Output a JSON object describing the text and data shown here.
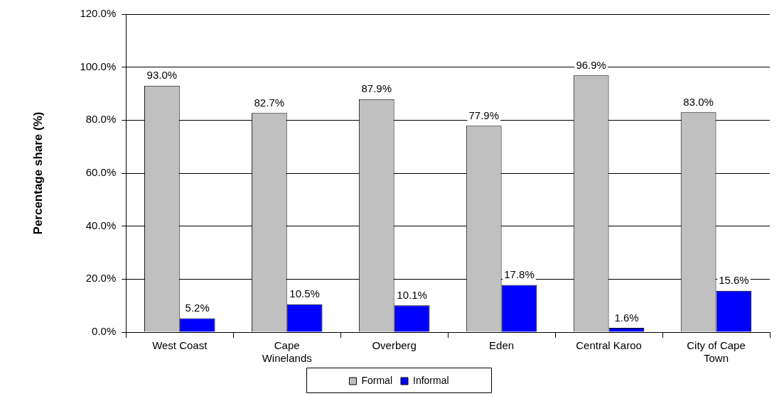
{
  "chart_data": {
    "type": "bar",
    "ylabel": "Percentage share (%)",
    "categories": [
      "West Coast",
      "Cape Winelands",
      "Overberg",
      "Eden",
      "Central Karoo",
      "City of Cape Town"
    ],
    "series": [
      {
        "name": "Formal",
        "color": "#c0c0c0",
        "values": [
          93.0,
          82.7,
          87.9,
          77.9,
          96.9,
          83.0
        ],
        "value_labels": [
          "93.0%",
          "82.7%",
          "87.9%",
          "77.9%",
          "96.9%",
          "83.0%"
        ]
      },
      {
        "name": "Informal",
        "color": "#0000ff",
        "values": [
          5.2,
          10.5,
          10.1,
          17.8,
          1.6,
          15.6
        ],
        "value_labels": [
          "5.2%",
          "10.5%",
          "10.1%",
          "17.8%",
          "1.6%",
          "15.6%"
        ]
      }
    ],
    "ylim": [
      0,
      120
    ],
    "yticks": [
      {
        "value": 0,
        "label": "0.0%"
      },
      {
        "value": 20,
        "label": "20.0%"
      },
      {
        "value": 40,
        "label": "40.0%"
      },
      {
        "value": 60,
        "label": "60.0%"
      },
      {
        "value": 80,
        "label": "80.0%"
      },
      {
        "value": 100,
        "label": "100.0%"
      },
      {
        "value": 120,
        "label": "120.0%"
      }
    ],
    "grid": "y",
    "legend": "bottom"
  }
}
